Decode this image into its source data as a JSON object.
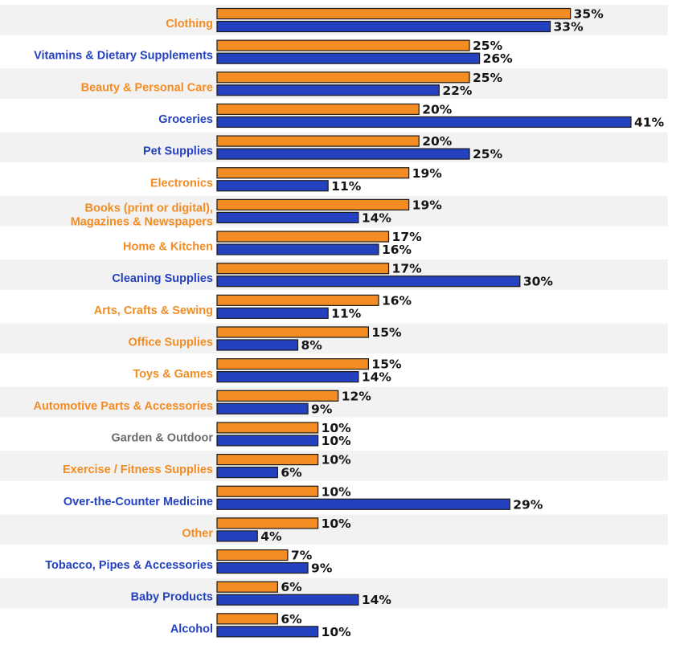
{
  "chart_data": {
    "type": "bar",
    "orientation": "horizontal",
    "value_format": "{v}%",
    "categories": [
      "Clothing",
      "Vitamins & Dietary Supplements",
      "Beauty & Personal Care",
      "Groceries",
      "Pet Supplies",
      "Electronics",
      [
        "Books (print or digital),",
        "Magazines & Newspapers"
      ],
      "Home & Kitchen",
      "Cleaning Supplies",
      "Arts, Crafts & Sewing",
      "Office Supplies",
      "Toys & Games",
      "Automotive Parts & Accessories",
      "Garden & Outdoor",
      "Exercise / Fitness Supplies",
      "Over-the-Counter Medicine",
      "Other",
      "Tobacco, Pipes & Accessories",
      "Baby Products",
      "Alcohol"
    ],
    "label_colors": [
      "#f38c22",
      "#2441c0",
      "#f38c22",
      "#2441c0",
      "#2441c0",
      "#f38c22",
      "#f38c22",
      "#f38c22",
      "#2441c0",
      "#f38c22",
      "#f38c22",
      "#f38c22",
      "#f38c22",
      "#6b6b6b",
      "#f38c22",
      "#2441c0",
      "#f38c22",
      "#2441c0",
      "#2441c0",
      "#2441c0"
    ],
    "series": [
      {
        "color": "#f38c22",
        "values": [
          35,
          25,
          25,
          20,
          20,
          19,
          19,
          17,
          17,
          16,
          15,
          15,
          12,
          10,
          10,
          10,
          10,
          7,
          6,
          6
        ]
      },
      {
        "color": "#2441c0",
        "values": [
          33,
          26,
          22,
          41,
          25,
          11,
          14,
          16,
          30,
          11,
          8,
          14,
          9,
          10,
          6,
          29,
          4,
          9,
          14,
          10
        ]
      }
    ],
    "xlim": [
      0,
      41
    ],
    "stripe_color": "#f2f2f2",
    "grid": false,
    "legend": "none"
  }
}
